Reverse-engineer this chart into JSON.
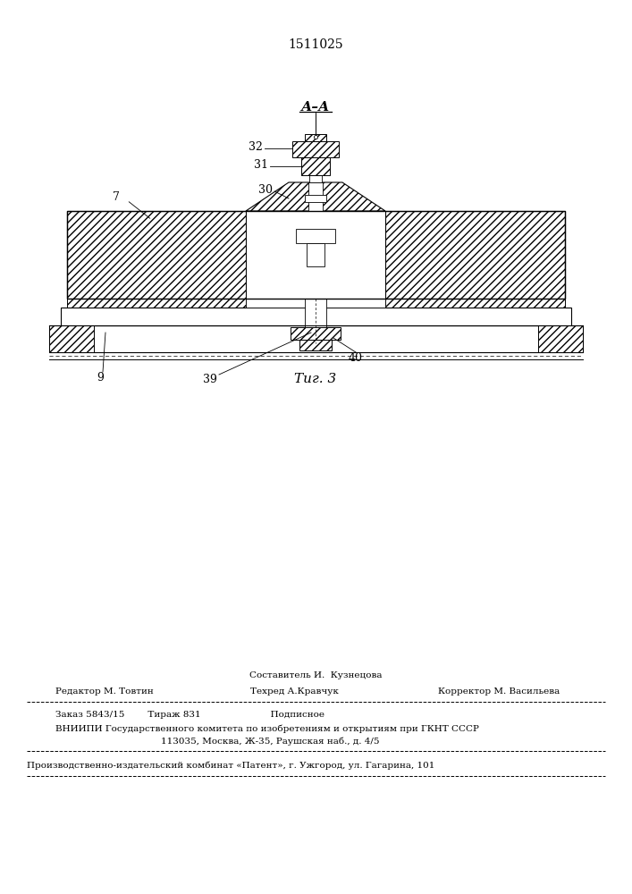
{
  "patent_number": "1511025",
  "figure_label": "Τиг. 3",
  "bg_color": "#ffffff",
  "line_color": "#000000",
  "footer_line0_center": "Составитель И.  Кузнецова",
  "footer_line1_left": "Редактор М. Товтин",
  "footer_line1_center": "Техред А.Кравчук",
  "footer_line1_right": "Корректор М. Васильева",
  "footer_line2": "Заказ 5843/15        Тираж 831                        Подписное",
  "footer_line3": "ВНИИПИ Государственного комитета по изобретениям и открытиям при ГКНТ СССР",
  "footer_line4": "113035, Москва, Ж-35, Раушская наб., д. 4/5",
  "footer_line5": "Производственно-издательский комбинат «Патент», г. Ужгород, ул. Гагарина, 101"
}
